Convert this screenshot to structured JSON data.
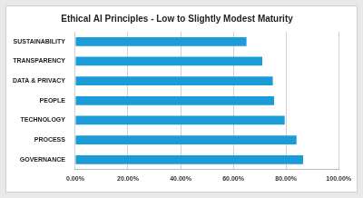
{
  "chart_data": {
    "type": "bar",
    "orientation": "horizontal",
    "title": "Ethical AI Principles - Low to Slightly Modest Maturity",
    "categories": [
      "SUSTAINABILITY",
      "TRANSPARENCY",
      "DATA & PRIVACY",
      "PEOPLE",
      "TECHNOLOGY",
      "PROCESS",
      "GOVERNANCE"
    ],
    "values": [
      65,
      71,
      75,
      75.5,
      79.5,
      84,
      86.5
    ],
    "color": "#1b9bd7",
    "xlim": [
      0,
      100
    ],
    "xticks": [
      {
        "value": 0,
        "label": "0.00%"
      },
      {
        "value": 20,
        "label": "20.00%"
      },
      {
        "value": 40,
        "label": "40.00%"
      },
      {
        "value": 60,
        "label": "60.00%"
      },
      {
        "value": 80,
        "label": "80.00%"
      },
      {
        "value": 100,
        "label": "100.00%"
      }
    ],
    "grid": true
  }
}
